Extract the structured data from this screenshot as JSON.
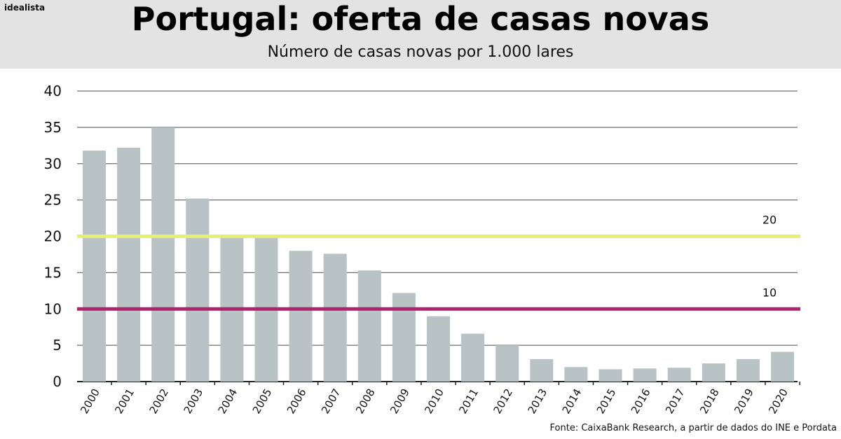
{
  "header": {
    "brand": "idealista",
    "title": "Portugal: oferta de casas novas",
    "subtitle": "Número de casas novas por 1.000 lares"
  },
  "footer": {
    "source": "Fonte: CaixaBank Research, a partir de dados do INE e Pordata"
  },
  "chart_data": {
    "type": "bar",
    "title": "Portugal: oferta de casas novas",
    "subtitle": "Número de casas novas por 1.000 lares",
    "xlabel": "",
    "ylabel": "",
    "ylim": [
      0,
      40
    ],
    "yticks": [
      0,
      5,
      10,
      15,
      20,
      25,
      30,
      35,
      40
    ],
    "grid": true,
    "categories": [
      "2000",
      "2001",
      "2002",
      "2003",
      "2004",
      "2005",
      "2006",
      "2007",
      "2008",
      "2009",
      "2010",
      "2011",
      "2012",
      "2013",
      "2014",
      "2015",
      "2016",
      "2017",
      "2018",
      "2019",
      "2020"
    ],
    "values": [
      31.8,
      32.2,
      35.0,
      25.2,
      20.0,
      20.0,
      18.0,
      17.6,
      15.3,
      12.2,
      9.0,
      6.6,
      5.0,
      3.1,
      2.0,
      1.7,
      1.8,
      1.9,
      2.5,
      3.1,
      4.1
    ],
    "bar_color": "#b9c3c6",
    "reference_lines": [
      {
        "value": 20,
        "label": "20",
        "color": "#e4f06e"
      },
      {
        "value": 10,
        "label": "10",
        "color": "#b0246e"
      }
    ]
  }
}
